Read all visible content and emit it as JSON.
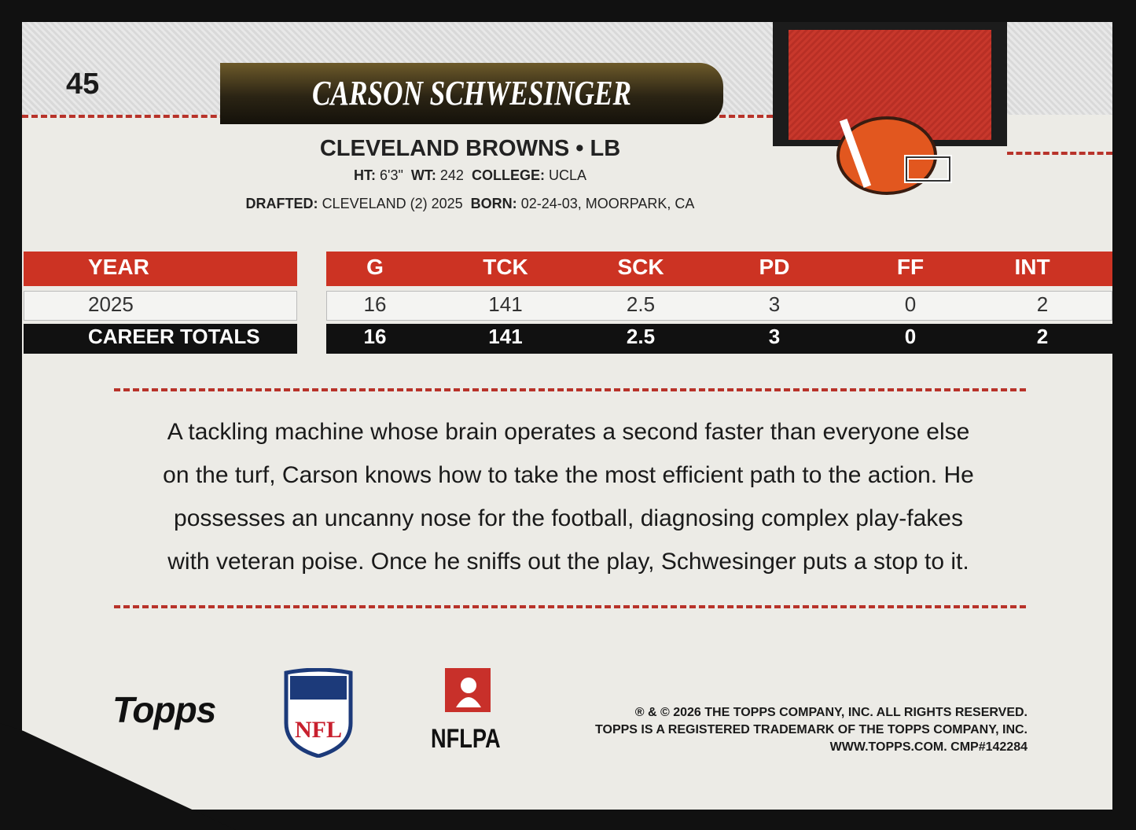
{
  "card_number": "45",
  "player_name": "CARSON SCHWESINGER",
  "team_position": "CLEVELAND BROWNS • LB",
  "bio": [
    [
      {
        "label": "HT:",
        "value": "6'3\""
      },
      {
        "label": "WT:",
        "value": "242"
      },
      {
        "label": "COLLEGE:",
        "value": "UCLA"
      }
    ],
    [
      {
        "label": "DRAFTED:",
        "value": "CLEVELAND (2) 2025"
      },
      {
        "label": "BORN:",
        "value": "02-24-03, MOORPARK, CA"
      }
    ]
  ],
  "stats": {
    "headers": [
      "YEAR",
      "G",
      "TCK",
      "SCK",
      "PD",
      "FF",
      "INT"
    ],
    "rows": [
      [
        "2025",
        "16",
        "141",
        "2.5",
        "3",
        "0",
        "2"
      ],
      [
        "CAREER TOTALS",
        "16",
        "141",
        "2.5",
        "3",
        "0",
        "2"
      ]
    ]
  },
  "blurb": [
    "A tackling machine whose brain operates a second faster than everyone else",
    "on the turf, Carson knows how to take the most efficient path to the action. He",
    "possesses an uncanny nose for the football, diagnosing complex play-fakes",
    "with veteran poise. Once he sniffs out the play, Schwesinger puts a stop to it."
  ],
  "logos": {
    "topps": "Topps",
    "nfl": "NFL",
    "nflpa": "NFLPA"
  },
  "legal": [
    "® & © 2026 THE TOPPS COMPANY, INC. ALL RIGHTS RESERVED.",
    "TOPPS IS A REGISTERED TRADEMARK OF THE TOPPS COMPANY, INC.",
    "WWW.TOPPS.COM. CMP#142284"
  ]
}
